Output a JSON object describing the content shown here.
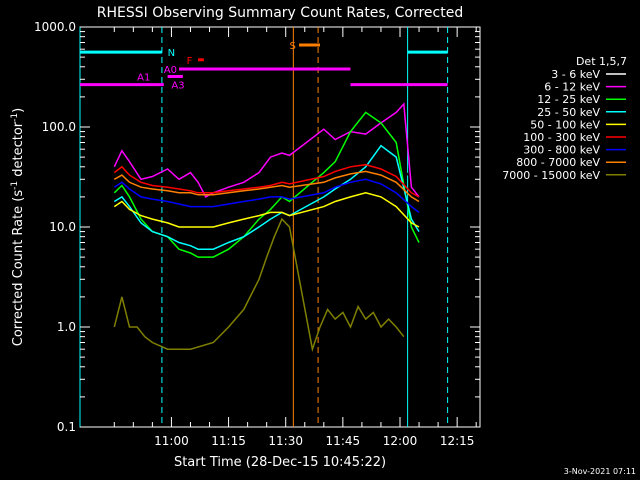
{
  "chart_data": {
    "type": "line",
    "title": "RHESSI Observing Summary Count Rates, Corrected",
    "xlabel": "Start Time (28-Dec-15 10:45:22)",
    "ylabel": "Corrected Count Rate (s",
    "ylabel_sup1": "-1",
    "ylabel_mid": " detector",
    "ylabel_sup2": "-1",
    "ylabel_end": ")",
    "y_scale": "log",
    "ylim": [
      0.1,
      1000
    ],
    "y_ticks": [
      {
        "value": 0.1,
        "label": "0.1"
      },
      {
        "value": 1,
        "label": "1.0"
      },
      {
        "value": 10,
        "label": "10.0"
      },
      {
        "value": 100,
        "label": "100.0"
      },
      {
        "value": 1000,
        "label": "1000.0"
      }
    ],
    "xlim_minutes": [
      -9,
      96
    ],
    "x_ticks": [
      {
        "minute": 15,
        "label": "11:00"
      },
      {
        "minute": 30,
        "label": "11:15"
      },
      {
        "minute": 45,
        "label": "11:30"
      },
      {
        "minute": 60,
        "label": "11:45"
      },
      {
        "minute": 75,
        "label": "12:00"
      },
      {
        "minute": 90,
        "label": "12:15"
      }
    ],
    "legend_title": "Det 1,5,7",
    "legend_position": "right",
    "series": [
      {
        "name": "3 - 6 keV",
        "color": "#000000",
        "points": [
          [
            0,
            50
          ],
          [
            2,
            55
          ],
          [
            4,
            48
          ],
          [
            7,
            40
          ],
          [
            10,
            42
          ],
          [
            14,
            45
          ],
          [
            17,
            40
          ],
          [
            20,
            42
          ],
          [
            22,
            38
          ],
          [
            26,
            48
          ],
          [
            30,
            50
          ],
          [
            34,
            47
          ],
          [
            38,
            42
          ],
          [
            41,
            55
          ],
          [
            44,
            60
          ],
          [
            46,
            58
          ],
          [
            55,
            55
          ],
          [
            58,
            80
          ],
          [
            62,
            60
          ],
          [
            66,
            52
          ],
          [
            70,
            50
          ],
          [
            74,
            48
          ],
          [
            78,
            30
          ],
          [
            80,
            30
          ]
        ]
      },
      {
        "name": "6 - 12 keV",
        "color": "#ff00ff",
        "points": [
          [
            0,
            40
          ],
          [
            2,
            58
          ],
          [
            4,
            45
          ],
          [
            7,
            30
          ],
          [
            10,
            32
          ],
          [
            14,
            38
          ],
          [
            17,
            30
          ],
          [
            20,
            35
          ],
          [
            22,
            28
          ],
          [
            24,
            20
          ],
          [
            26,
            22
          ],
          [
            30,
            25
          ],
          [
            34,
            28
          ],
          [
            38,
            35
          ],
          [
            41,
            50
          ],
          [
            44,
            55
          ],
          [
            46,
            52
          ],
          [
            55,
            95
          ],
          [
            58,
            75
          ],
          [
            62,
            90
          ],
          [
            66,
            85
          ],
          [
            70,
            110
          ],
          [
            74,
            140
          ],
          [
            76,
            170
          ],
          [
            78,
            25
          ],
          [
            80,
            20
          ]
        ]
      },
      {
        "name": "12 - 25 keV",
        "color": "#00ff00",
        "points": [
          [
            0,
            22
          ],
          [
            2,
            26
          ],
          [
            4,
            20
          ],
          [
            7,
            12
          ],
          [
            10,
            9
          ],
          [
            14,
            8
          ],
          [
            17,
            6
          ],
          [
            20,
            5.5
          ],
          [
            22,
            5
          ],
          [
            26,
            5
          ],
          [
            30,
            6
          ],
          [
            34,
            8
          ],
          [
            38,
            12
          ],
          [
            41,
            15
          ],
          [
            44,
            20
          ],
          [
            46,
            18
          ],
          [
            55,
            35
          ],
          [
            58,
            45
          ],
          [
            62,
            90
          ],
          [
            66,
            140
          ],
          [
            70,
            110
          ],
          [
            74,
            70
          ],
          [
            78,
            10
          ],
          [
            80,
            7
          ]
        ]
      },
      {
        "name": "25 - 50 keV",
        "color": "#00ffff",
        "points": [
          [
            0,
            18
          ],
          [
            2,
            20
          ],
          [
            4,
            16
          ],
          [
            7,
            11
          ],
          [
            10,
            9
          ],
          [
            14,
            8
          ],
          [
            17,
            7
          ],
          [
            20,
            6.5
          ],
          [
            22,
            6
          ],
          [
            26,
            6
          ],
          [
            30,
            7
          ],
          [
            34,
            8
          ],
          [
            38,
            10
          ],
          [
            41,
            12
          ],
          [
            44,
            14
          ],
          [
            46,
            13
          ],
          [
            55,
            20
          ],
          [
            58,
            24
          ],
          [
            62,
            30
          ],
          [
            66,
            40
          ],
          [
            70,
            65
          ],
          [
            74,
            50
          ],
          [
            78,
            12
          ],
          [
            80,
            9
          ]
        ]
      },
      {
        "name": "50 - 100 keV",
        "color": "#ffff00",
        "points": [
          [
            0,
            16
          ],
          [
            2,
            18
          ],
          [
            4,
            15
          ],
          [
            7,
            13
          ],
          [
            10,
            12
          ],
          [
            14,
            11
          ],
          [
            17,
            10
          ],
          [
            20,
            10
          ],
          [
            22,
            10
          ],
          [
            26,
            10
          ],
          [
            30,
            11
          ],
          [
            34,
            12
          ],
          [
            38,
            13
          ],
          [
            41,
            14
          ],
          [
            44,
            14
          ],
          [
            46,
            13
          ],
          [
            55,
            16
          ],
          [
            58,
            18
          ],
          [
            62,
            20
          ],
          [
            66,
            22
          ],
          [
            70,
            20
          ],
          [
            74,
            16
          ],
          [
            78,
            11
          ],
          [
            80,
            10
          ]
        ]
      },
      {
        "name": "100 - 300 keV",
        "color": "#ff0000",
        "points": [
          [
            0,
            35
          ],
          [
            2,
            40
          ],
          [
            4,
            33
          ],
          [
            7,
            28
          ],
          [
            10,
            26
          ],
          [
            14,
            25
          ],
          [
            17,
            24
          ],
          [
            20,
            23
          ],
          [
            22,
            22
          ],
          [
            26,
            22
          ],
          [
            30,
            23
          ],
          [
            34,
            24
          ],
          [
            38,
            25
          ],
          [
            41,
            26
          ],
          [
            44,
            28
          ],
          [
            46,
            27
          ],
          [
            55,
            32
          ],
          [
            58,
            36
          ],
          [
            62,
            40
          ],
          [
            66,
            42
          ],
          [
            70,
            38
          ],
          [
            74,
            32
          ],
          [
            78,
            22
          ],
          [
            80,
            20
          ]
        ]
      },
      {
        "name": "300 - 800 keV",
        "color": "#0000ff",
        "points": [
          [
            0,
            25
          ],
          [
            2,
            28
          ],
          [
            4,
            24
          ],
          [
            7,
            20
          ],
          [
            10,
            19
          ],
          [
            14,
            18
          ],
          [
            17,
            17
          ],
          [
            20,
            16
          ],
          [
            22,
            16
          ],
          [
            26,
            16
          ],
          [
            30,
            17
          ],
          [
            34,
            18
          ],
          [
            38,
            19
          ],
          [
            41,
            20
          ],
          [
            44,
            20
          ],
          [
            46,
            19
          ],
          [
            55,
            22
          ],
          [
            58,
            25
          ],
          [
            62,
            28
          ],
          [
            66,
            30
          ],
          [
            70,
            27
          ],
          [
            74,
            22
          ],
          [
            78,
            16
          ],
          [
            80,
            14
          ]
        ]
      },
      {
        "name": "800 - 7000 keV",
        "color": "#ff8000",
        "points": [
          [
            0,
            30
          ],
          [
            2,
            33
          ],
          [
            4,
            28
          ],
          [
            7,
            25
          ],
          [
            10,
            24
          ],
          [
            14,
            23
          ],
          [
            17,
            22
          ],
          [
            20,
            22
          ],
          [
            22,
            21
          ],
          [
            26,
            21
          ],
          [
            30,
            22
          ],
          [
            34,
            23
          ],
          [
            38,
            24
          ],
          [
            41,
            25
          ],
          [
            44,
            26
          ],
          [
            46,
            25
          ],
          [
            55,
            28
          ],
          [
            58,
            31
          ],
          [
            62,
            34
          ],
          [
            66,
            36
          ],
          [
            70,
            33
          ],
          [
            74,
            28
          ],
          [
            78,
            20
          ],
          [
            80,
            18
          ]
        ]
      },
      {
        "name": "7000 - 15000 keV",
        "color": "#808000",
        "points": [
          [
            0,
            1
          ],
          [
            2,
            2
          ],
          [
            4,
            1
          ],
          [
            6,
            1
          ],
          [
            8,
            0.8
          ],
          [
            10,
            0.7
          ],
          [
            14,
            0.6
          ],
          [
            20,
            0.6
          ],
          [
            26,
            0.7
          ],
          [
            30,
            1
          ],
          [
            34,
            1.5
          ],
          [
            38,
            3
          ],
          [
            40,
            5
          ],
          [
            42,
            8
          ],
          [
            44,
            12
          ],
          [
            46,
            10
          ],
          [
            52,
            0.6
          ],
          [
            54,
            1
          ],
          [
            56,
            1.5
          ],
          [
            58,
            1.2
          ],
          [
            60,
            1.4
          ],
          [
            62,
            1
          ],
          [
            64,
            1.6
          ],
          [
            66,
            1.2
          ],
          [
            68,
            1.4
          ],
          [
            70,
            1
          ],
          [
            72,
            1.2
          ],
          [
            74,
            1
          ],
          [
            76,
            0.8
          ]
        ]
      }
    ],
    "vertical_lines": [
      {
        "minute": -9,
        "color": "#00ffff",
        "style": "solid"
      },
      {
        "minute": 12.5,
        "color": "#00ffff",
        "style": "dashed"
      },
      {
        "minute": 47,
        "color": "#ff8000",
        "style": "solid"
      },
      {
        "minute": 53.5,
        "color": "#ff8000",
        "style": "dashed"
      },
      {
        "minute": 77,
        "color": "#00ffff",
        "style": "solid"
      },
      {
        "minute": 87.5,
        "color": "#00ffff",
        "style": "dashed"
      }
    ],
    "state_bars": [
      {
        "label": "N",
        "color": "#00ffff",
        "segments": [
          [
            -9,
            12.5
          ],
          [
            77,
            87.5
          ]
        ],
        "level": 560,
        "label_minute": 14
      },
      {
        "label": "S",
        "color": "#ff8000",
        "segments": [
          [
            48.5,
            54
          ]
        ],
        "level": 660,
        "label_minute": 46
      },
      {
        "label": "F",
        "color": "#ff0000",
        "segments": [
          [
            22,
            23.5
          ]
        ],
        "level": 470,
        "label_minute": 19
      },
      {
        "label": "A0",
        "color": "#ff00ff",
        "segments": [
          [
            17,
            62
          ]
        ],
        "level": 380,
        "label_minute": 13
      },
      {
        "label": "A1",
        "color": "#ff00ff",
        "segments": [
          [
            14,
            18
          ]
        ],
        "level": 320,
        "label_minute": 6
      },
      {
        "label": "A3",
        "color": "#ff00ff",
        "segments": [
          [
            -9,
            13
          ],
          [
            62,
            87.5
          ]
        ],
        "level": 265,
        "label_minute": 15
      }
    ],
    "grid": false
  },
  "footer": {
    "timestamp": "3-Nov-2021 07:11"
  }
}
